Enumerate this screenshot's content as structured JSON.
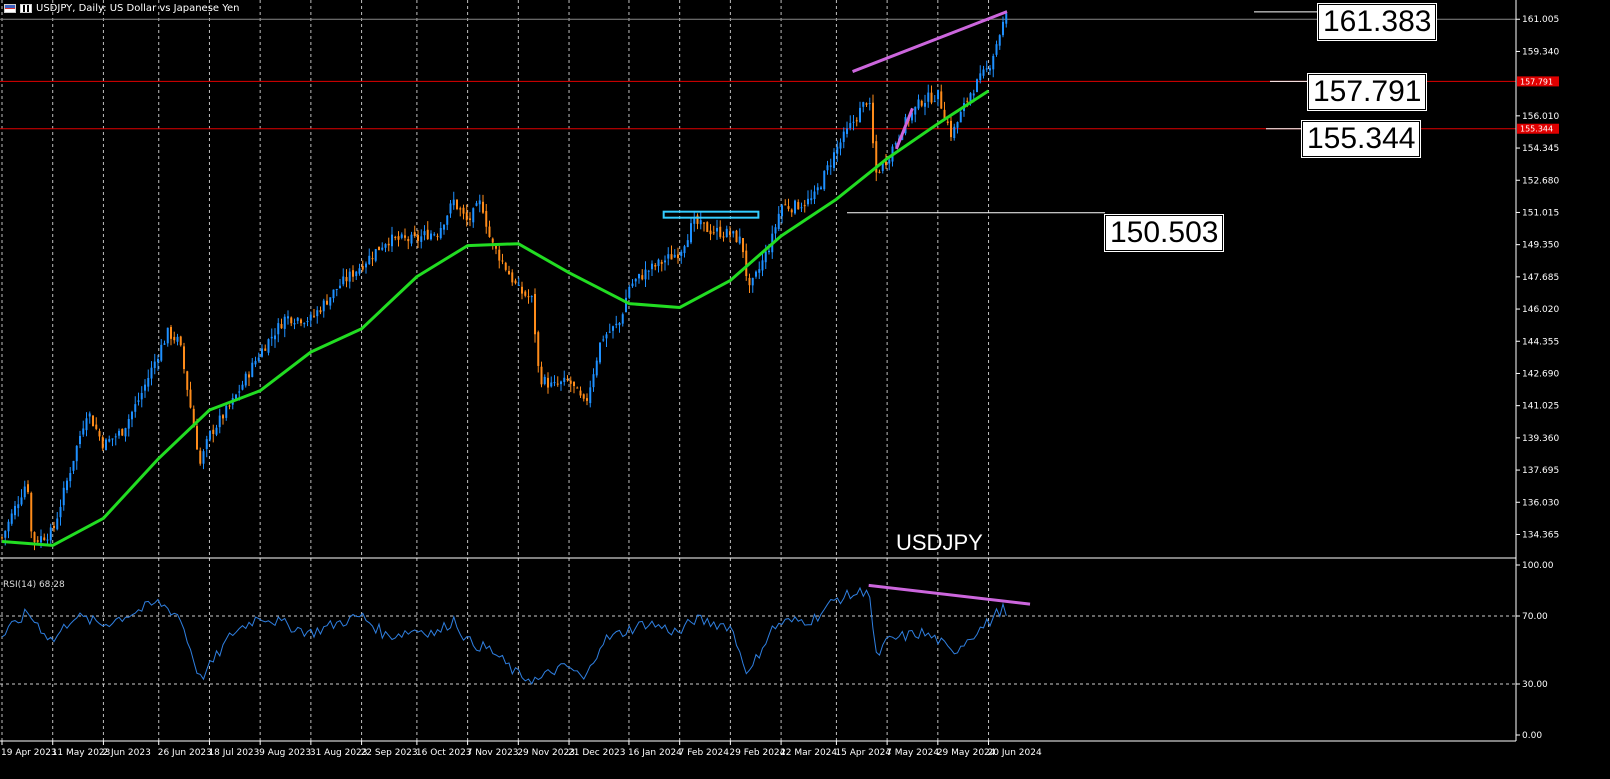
{
  "header": {
    "symbol": "USDJPY",
    "timeframe": "Daily",
    "description": "US Dollar vs Japanese Yen",
    "full_text": "USDJPY, Daily:  US Dollar vs Japanese Yen"
  },
  "watermark": "USDJPY",
  "colors": {
    "background": "#000000",
    "bull_candle": "#1e90ff",
    "bear_candle": "#ff8c1a",
    "moving_average": "#22dd22",
    "trendline": "#cc66dd",
    "horizontal_level": "#e00000",
    "resistance_box": "#33ccff",
    "rsi_line": "#2f7fe0",
    "grid": "#ffffff",
    "callout_bg": "#ffffff"
  },
  "callouts": [
    "161.383",
    "157.791",
    "155.344",
    "150.503"
  ],
  "rsi_label": "RSI(14) 68.28",
  "chart_data": [
    {
      "type": "candlestick",
      "title": "USDJPY, Daily: US Dollar vs Japanese Yen",
      "y_ticks": [
        "161.005",
        "159.340",
        "156.010",
        "154.345",
        "152.680",
        "151.015",
        "149.350",
        "147.685",
        "146.020",
        "144.355",
        "142.690",
        "141.025",
        "139.360",
        "137.695",
        "136.030",
        "134.365"
      ],
      "ylim": [
        133.2,
        162.0
      ],
      "x_tick_labels": [
        "19 Apr 2023",
        "11 May 2023",
        "2 Jun 2023",
        "26 Jun 2023",
        "18 Jul 2023",
        "9 Aug 2023",
        "31 Aug 2023",
        "22 Sep 2023",
        "16 Oct 2023",
        "7 Nov 2023",
        "29 Nov 2023",
        "21 Dec 2023",
        "16 Jan 2024",
        "7 Feb 2024",
        "29 Feb 2024",
        "22 Mar 2024",
        "15 Apr 2024",
        "7 May 2024",
        "29 May 2024",
        "20 Jun 2024"
      ],
      "price_path": [
        [
          "19 Apr 2023",
          134.2
        ],
        [
          "30 Apr 2023",
          137.2
        ],
        [
          "2 May 2023",
          134.0
        ],
        [
          "11 May 2023",
          134.5
        ],
        [
          "20 May 2023",
          138.3
        ],
        [
          "26 May 2023",
          140.8
        ],
        [
          "2 Jun 2023",
          139.0
        ],
        [
          "10 Jun 2023",
          139.7
        ],
        [
          "18 Jun 2023",
          141.5
        ],
        [
          "26 Jun 2023",
          143.8
        ],
        [
          "30 Jun 2023",
          144.8
        ],
        [
          "5 Jul 2023",
          144.3
        ],
        [
          "14 Jul 2023",
          138.0
        ],
        [
          "18 Jul 2023",
          139.5
        ],
        [
          "28 Jul 2023",
          141.2
        ],
        [
          "9 Aug 2023",
          143.8
        ],
        [
          "20 Aug 2023",
          145.6
        ],
        [
          "31 Aug 2023",
          145.5
        ],
        [
          "12 Sep 2023",
          147.2
        ],
        [
          "22 Sep 2023",
          148.3
        ],
        [
          "3 Oct 2023",
          149.6
        ],
        [
          "16 Oct 2023",
          149.6
        ],
        [
          "20 Oct 2023",
          149.9
        ],
        [
          "25 Oct 2023",
          150.0
        ],
        [
          "1 Nov 2023",
          151.6
        ],
        [
          "7 Nov 2023",
          150.5
        ],
        [
          "13 Nov 2023",
          151.6
        ],
        [
          "17 Nov 2023",
          149.5
        ],
        [
          "22 Nov 2023",
          148.5
        ],
        [
          "29 Nov 2023",
          147.0
        ],
        [
          "5 Dec 2023",
          146.5
        ],
        [
          "8 Dec 2023",
          142.5
        ],
        [
          "14 Dec 2023",
          142.0
        ],
        [
          "21 Dec 2023",
          142.3
        ],
        [
          "28 Dec 2023",
          141.0
        ],
        [
          "4 Jan 2024",
          144.5
        ],
        [
          "12 Jan 2024",
          145.3
        ],
        [
          "16 Jan 2024",
          147.2
        ],
        [
          "24 Jan 2024",
          148.0
        ],
        [
          "7 Feb 2024",
          149.0
        ],
        [
          "13 Feb 2024",
          150.5
        ],
        [
          "20 Feb 2024",
          150.1
        ],
        [
          "29 Feb 2024",
          149.9
        ],
        [
          "5 Mar 2024",
          149.5
        ],
        [
          "8 Mar 2024",
          146.9
        ],
        [
          "13 Mar 2024",
          148.2
        ],
        [
          "18 Mar 2024",
          149.6
        ],
        [
          "22 Mar 2024",
          151.4
        ],
        [
          "27 Mar 2024",
          151.3
        ],
        [
          "5 Apr 2024",
          151.7
        ],
        [
          "15 Apr 2024",
          154.3
        ],
        [
          "29 Apr 2024",
          157.0
        ],
        [
          "2 May 2024",
          153.0
        ],
        [
          "7 May 2024",
          153.8
        ],
        [
          "14 May 2024",
          155.5
        ],
        [
          "22 May 2024",
          156.8
        ],
        [
          "29 May 2024",
          157.1
        ],
        [
          "4 Jun 2024",
          155.0
        ],
        [
          "12 Jun 2024",
          157.2
        ],
        [
          "20 Jun 2024",
          158.5
        ],
        [
          "26 Jun 2024",
          160.7
        ],
        [
          "28 Jun 2024",
          161.2
        ]
      ],
      "moving_average": [
        [
          "19 Apr 2023",
          134.0
        ],
        [
          "11 May 2023",
          133.8
        ],
        [
          "2 Jun 2023",
          135.2
        ],
        [
          "26 Jun 2023",
          138.3
        ],
        [
          "18 Jul 2023",
          140.8
        ],
        [
          "9 Aug 2023",
          141.8
        ],
        [
          "31 Aug 2023",
          143.8
        ],
        [
          "22 Sep 2023",
          145.0
        ],
        [
          "16 Oct 2023",
          147.7
        ],
        [
          "7 Nov 2023",
          149.3
        ],
        [
          "29 Nov 2023",
          149.4
        ],
        [
          "21 Dec 2023",
          147.9
        ],
        [
          "16 Jan 2024",
          146.3
        ],
        [
          "7 Feb 2024",
          146.1
        ],
        [
          "29 Feb 2024",
          147.5
        ],
        [
          "22 Mar 2024",
          149.8
        ],
        [
          "15 Apr 2024",
          151.7
        ],
        [
          "7 May 2024",
          153.8
        ],
        [
          "29 May 2024",
          155.6
        ],
        [
          "20 Jun 2024",
          157.3
        ]
      ],
      "levels": [
        161.005,
        157.791,
        155.344
      ],
      "level_labels": [
        "157.791",
        "155.344"
      ],
      "resistance_zone": {
        "from": "7 Feb 2024",
        "to": "29 Feb 2024",
        "price": 150.9
      }
    },
    {
      "type": "line",
      "title": "RSI(14) 68.28",
      "y_ticks": [
        "100.00",
        "70.00",
        "30.00",
        "0.00"
      ],
      "ylim": [
        0,
        100
      ],
      "levels": [
        70,
        30
      ],
      "rsi_path": [
        [
          "19 Apr 2023",
          58
        ],
        [
          "30 Apr 2023",
          72
        ],
        [
          "11 May 2023",
          55
        ],
        [
          "20 May 2023",
          70
        ],
        [
          "2 Jun 2023",
          65
        ],
        [
          "26 Jun 2023",
          78
        ],
        [
          "5 Jul 2023",
          70
        ],
        [
          "14 Jul 2023",
          33
        ],
        [
          "18 Jul 2023",
          40
        ],
        [
          "28 Jul 2023",
          60
        ],
        [
          "9 Aug 2023",
          70
        ],
        [
          "20 Aug 2023",
          65
        ],
        [
          "31 Aug 2023",
          60
        ],
        [
          "12 Sep 2023",
          66
        ],
        [
          "22 Sep 2023",
          70
        ],
        [
          "3 Oct 2023",
          58
        ],
        [
          "16 Oct 2023",
          62
        ],
        [
          "25 Oct 2023",
          60
        ],
        [
          "1 Nov 2023",
          68
        ],
        [
          "7 Nov 2023",
          55
        ],
        [
          "17 Nov 2023",
          50
        ],
        [
          "29 Nov 2023",
          35
        ],
        [
          "8 Dec 2023",
          32
        ],
        [
          "14 Dec 2023",
          38
        ],
        [
          "21 Dec 2023",
          40
        ],
        [
          "28 Dec 2023",
          32
        ],
        [
          "4 Jan 2024",
          55
        ],
        [
          "16 Jan 2024",
          62
        ],
        [
          "24 Jan 2024",
          66
        ],
        [
          "7 Feb 2024",
          60
        ],
        [
          "13 Feb 2024",
          68
        ],
        [
          "29 Feb 2024",
          64
        ],
        [
          "8 Mar 2024",
          35
        ],
        [
          "13 Mar 2024",
          50
        ],
        [
          "18 Mar 2024",
          62
        ],
        [
          "22 Mar 2024",
          66
        ],
        [
          "5 Apr 2024",
          68
        ],
        [
          "15 Apr 2024",
          80
        ],
        [
          "26 Apr 2024",
          84
        ],
        [
          "29 Apr 2024",
          88
        ],
        [
          "2 May 2024",
          45
        ],
        [
          "7 May 2024",
          55
        ],
        [
          "14 May 2024",
          58
        ],
        [
          "22 May 2024",
          60
        ],
        [
          "29 May 2024",
          56
        ],
        [
          "4 Jun 2024",
          48
        ],
        [
          "12 Jun 2024",
          58
        ],
        [
          "20 Jun 2024",
          66
        ],
        [
          "26 Jun 2024",
          75
        ],
        [
          "28 Jun 2024",
          68
        ]
      ],
      "divergence_line": [
        [
          "29 Apr 2024",
          88
        ],
        [
          "8 Jul 2024",
          77
        ]
      ]
    }
  ]
}
